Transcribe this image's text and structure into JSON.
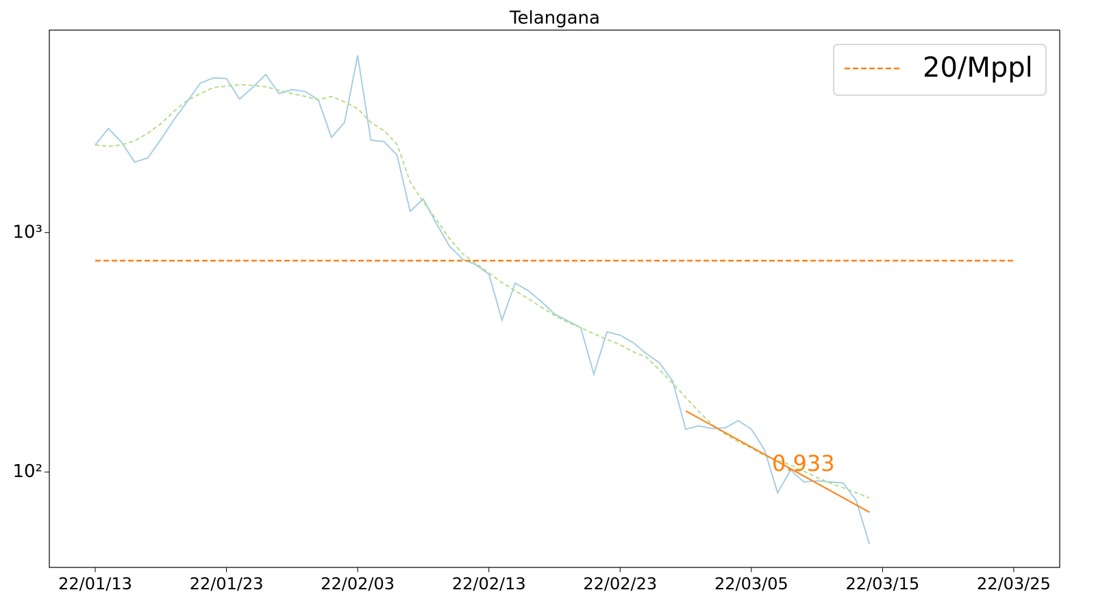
{
  "chart_data": {
    "type": "line",
    "title": "Telangana",
    "x": [
      0,
      1,
      2,
      3,
      4,
      5,
      6,
      7,
      8,
      9,
      10,
      11,
      12,
      13,
      14,
      15,
      16,
      17,
      18,
      19,
      20,
      21,
      22,
      23,
      24,
      25,
      26,
      27,
      28,
      29,
      30,
      31,
      32,
      33,
      34,
      35,
      36,
      37,
      38,
      39,
      40,
      41,
      42,
      43,
      44,
      45,
      46,
      47,
      48,
      49,
      50,
      51,
      52,
      53,
      54,
      55,
      56,
      57,
      58,
      59
    ],
    "xlim": [
      -3.5,
      73.5
    ],
    "xticks": [
      {
        "value": 0,
        "label": "22/01/13"
      },
      {
        "value": 10,
        "label": "22/01/23"
      },
      {
        "value": 20,
        "label": "22/02/03"
      },
      {
        "value": 30,
        "label": "22/02/13"
      },
      {
        "value": 40,
        "label": "22/02/23"
      },
      {
        "value": 50,
        "label": "22/03/05"
      },
      {
        "value": 60,
        "label": "22/03/15"
      },
      {
        "value": 70,
        "label": "22/03/25"
      }
    ],
    "ylim": [
      40,
      7000
    ],
    "yscale": "log",
    "yticks": [
      {
        "value": 100,
        "label": "10²"
      },
      {
        "value": 1000,
        "label": "10³"
      }
    ],
    "legend": "upper right",
    "series": [
      {
        "color": "#a6cee3",
        "style": "solid",
        "values": [
          2322,
          2718,
          2384,
          1968,
          2048,
          2447,
          2960,
          3514,
          4198,
          4424,
          4395,
          3607,
          4033,
          4571,
          3800,
          3953,
          3881,
          3582,
          2496,
          2884,
          5495,
          2432,
          2399,
          2104,
          1227,
          1380,
          1089,
          877,
          774,
          734,
          670,
          431,
          615,
          572,
          515,
          457,
          428,
          401,
          256,
          385,
          373,
          347,
          312,
          286,
          240,
          151,
          156,
          152,
          153,
          164,
          151,
          124,
          82,
          102,
          91,
          92,
          91,
          90,
          76,
          50
        ]
      },
      {
        "color": "#b2df8a",
        "style": "dashed",
        "values": [
          2322,
          2290,
          2322,
          2414,
          2598,
          2848,
          3204,
          3558,
          3800,
          4033,
          4087,
          4143,
          4115,
          4058,
          3924,
          3800,
          3701,
          3582,
          3701,
          3514,
          3290,
          2884,
          2665,
          2335,
          1627,
          1345,
          1133,
          942,
          816,
          744,
          678,
          618,
          572,
          529,
          488,
          451,
          422,
          401,
          378,
          358,
          340,
          318,
          302,
          267,
          235,
          205,
          179,
          158,
          144,
          134,
          126,
          117,
          112,
          107,
          101,
          95,
          90,
          86,
          82,
          78
        ]
      },
      {
        "name": "20/Mppl",
        "color": "#ff7f0e",
        "style": "dashed",
        "x": [
          0,
          70
        ],
        "values": [
          763,
          763
        ]
      },
      {
        "color": "#ff7f0e",
        "style": "solid",
        "x": [
          45,
          59
        ],
        "values": [
          180,
          68
        ]
      }
    ],
    "annotations": [
      {
        "text": "0.933",
        "color": "#ff7f0e"
      }
    ]
  }
}
